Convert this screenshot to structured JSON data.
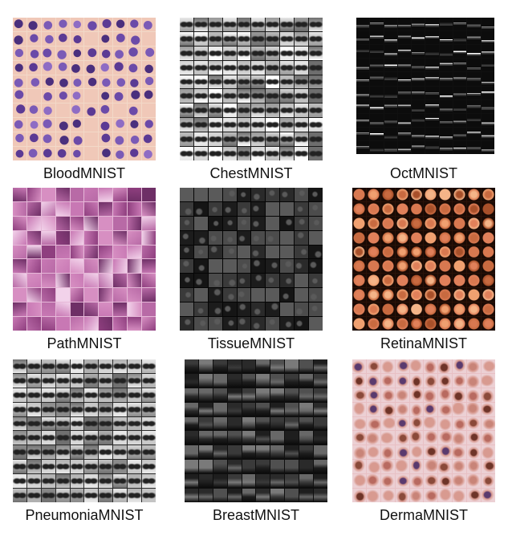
{
  "panels": [
    {
      "label": "BloodMNIST",
      "kind": "blood",
      "bg": "#f2d9c8",
      "colors": [
        "#5b3a94",
        "#6b4aa8",
        "#4a2f7d",
        "#7a5ab6",
        "#8e6cc4",
        "#f0c8b8"
      ]
    },
    {
      "label": "ChestMNIST",
      "kind": "xray",
      "bg": "#1a1a1a",
      "colors": [
        "#e8e8e8",
        "#bdbdbd",
        "#9a9a9a",
        "#d4d4d4",
        "#6e6e6e",
        "#ffffff"
      ]
    },
    {
      "label": "OctMNIST",
      "kind": "oct",
      "bg": "#101010",
      "colors": [
        "#8a8a8a",
        "#b8b8b8",
        "#5e5e5e",
        "#ffffff",
        "#2a2a2a",
        "#c8c8c8"
      ]
    },
    {
      "label": "PathMNIST",
      "kind": "path",
      "bg": "#e6b8d8",
      "colors": [
        "#d78fc2",
        "#b86aa6",
        "#8f3f7f",
        "#f2d2ea",
        "#c878b4",
        "#6e2f66"
      ]
    },
    {
      "label": "TissueMNIST",
      "kind": "tissue",
      "bg": "#050505",
      "colors": [
        "#1c1c1c",
        "#2a2a2a",
        "#3a3a3a",
        "#4c4c4c",
        "#151515",
        "#5a5a5a"
      ]
    },
    {
      "label": "RetinaMNIST",
      "kind": "retina",
      "bg": "#2a1208",
      "colors": [
        "#e0805a",
        "#c86a40",
        "#f0a070",
        "#a8502a",
        "#d87850",
        "#f4b488"
      ]
    },
    {
      "label": "PneumoniaMNIST",
      "kind": "xray",
      "bg": "#2a2a2a",
      "colors": [
        "#d8d8d8",
        "#b0b0b0",
        "#8a8a8a",
        "#c4c4c4",
        "#e8e8e8",
        "#707070"
      ]
    },
    {
      "label": "BreastMNIST",
      "kind": "breast",
      "bg": "#0e0e0e",
      "colors": [
        "#3a3a3a",
        "#505050",
        "#2a2a2a",
        "#686868",
        "#7a7a7a",
        "#1e1e1e"
      ]
    },
    {
      "label": "DermaMNIST",
      "kind": "derma",
      "bg": "#e8c0c4",
      "colors": [
        "#b86a60",
        "#8a4a3a",
        "#d89a90",
        "#6e3428",
        "#c88478",
        "#5a3a6e"
      ]
    }
  ]
}
